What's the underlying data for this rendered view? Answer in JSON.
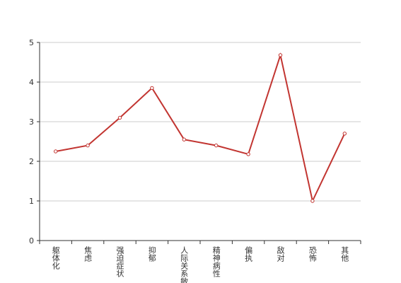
{
  "chart_data": {
    "type": "line",
    "categories": [
      "躯体化",
      "焦虑",
      "强迫症状",
      "抑郁",
      "人际关系敏感",
      "精神病性",
      "偏执",
      "敌对",
      "恐怖",
      "其他"
    ],
    "values": [
      2.25,
      2.4,
      3.1,
      3.85,
      2.55,
      2.4,
      2.18,
      4.68,
      1.0,
      2.7
    ],
    "color": "#c23531",
    "ylim": [
      0,
      5
    ],
    "yticks": [
      0,
      1,
      2,
      3,
      4,
      5
    ],
    "grid": true
  }
}
